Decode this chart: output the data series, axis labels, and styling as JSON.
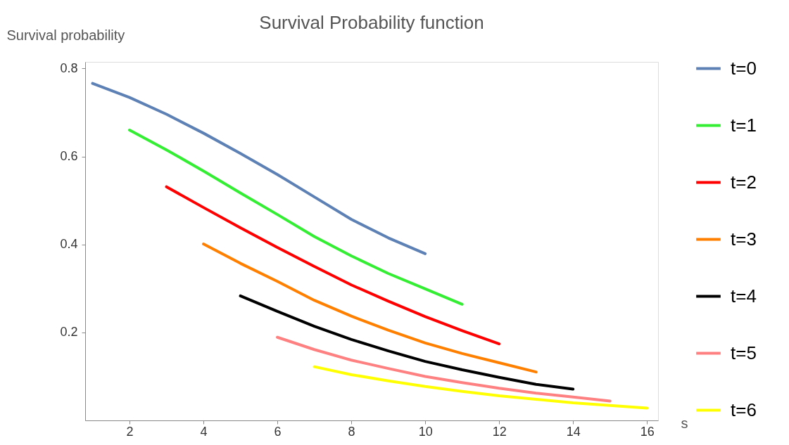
{
  "chart_data": {
    "type": "line",
    "title": "Survival Probability function",
    "xlabel": "s",
    "ylabel": "Survival probability",
    "xlim": [
      0.8,
      16.3
    ],
    "ylim": [
      0,
      0.815
    ],
    "xticks": [
      2,
      4,
      6,
      8,
      10,
      12,
      14,
      16
    ],
    "yticks": [
      0.2,
      0.4,
      0.6,
      0.8
    ],
    "grid": false,
    "legend": "right",
    "marker": "none",
    "line_style": "solid",
    "series": [
      {
        "name": "t=0",
        "color": "#5e81b5",
        "x": [
          1,
          2,
          3,
          4,
          5,
          6,
          7,
          8,
          9,
          10
        ],
        "values": [
          0.766,
          0.734,
          0.696,
          0.653,
          0.607,
          0.559,
          0.508,
          0.457,
          0.415,
          0.379
        ]
      },
      {
        "name": "t=1",
        "color": "#33ee33",
        "x": [
          2,
          3,
          4,
          5,
          6,
          7,
          8,
          9,
          10,
          11
        ],
        "values": [
          0.66,
          0.615,
          0.567,
          0.517,
          0.468,
          0.418,
          0.374,
          0.334,
          0.299,
          0.264
        ]
      },
      {
        "name": "t=2",
        "color": "#ff0000",
        "x": [
          3,
          4,
          5,
          6,
          7,
          8,
          9,
          10,
          11,
          12
        ],
        "values": [
          0.531,
          0.484,
          0.438,
          0.393,
          0.35,
          0.308,
          0.271,
          0.236,
          0.204,
          0.174
        ]
      },
      {
        "name": "t=3",
        "color": "#ff8000",
        "x": [
          4,
          5,
          6,
          7,
          8,
          9,
          10,
          11,
          12,
          13
        ],
        "values": [
          0.401,
          0.357,
          0.316,
          0.273,
          0.237,
          0.205,
          0.176,
          0.152,
          0.131,
          0.11
        ]
      },
      {
        "name": "t=4",
        "color": "#000000",
        "x": [
          5,
          6,
          7,
          8,
          9,
          10,
          11,
          12,
          13,
          14
        ],
        "values": [
          0.283,
          0.248,
          0.214,
          0.184,
          0.158,
          0.134,
          0.115,
          0.098,
          0.082,
          0.071
        ]
      },
      {
        "name": "t=5",
        "color": "#ff8080",
        "x": [
          6,
          7,
          8,
          9,
          10,
          11,
          12,
          13,
          14,
          15
        ],
        "values": [
          0.189,
          0.161,
          0.137,
          0.118,
          0.1,
          0.086,
          0.073,
          0.062,
          0.053,
          0.044
        ]
      },
      {
        "name": "t=6",
        "color": "#ffff00",
        "x": [
          7,
          8,
          9,
          10,
          11,
          12,
          13,
          14,
          15,
          16
        ],
        "values": [
          0.122,
          0.104,
          0.09,
          0.077,
          0.066,
          0.056,
          0.048,
          0.04,
          0.034,
          0.028
        ]
      }
    ]
  }
}
